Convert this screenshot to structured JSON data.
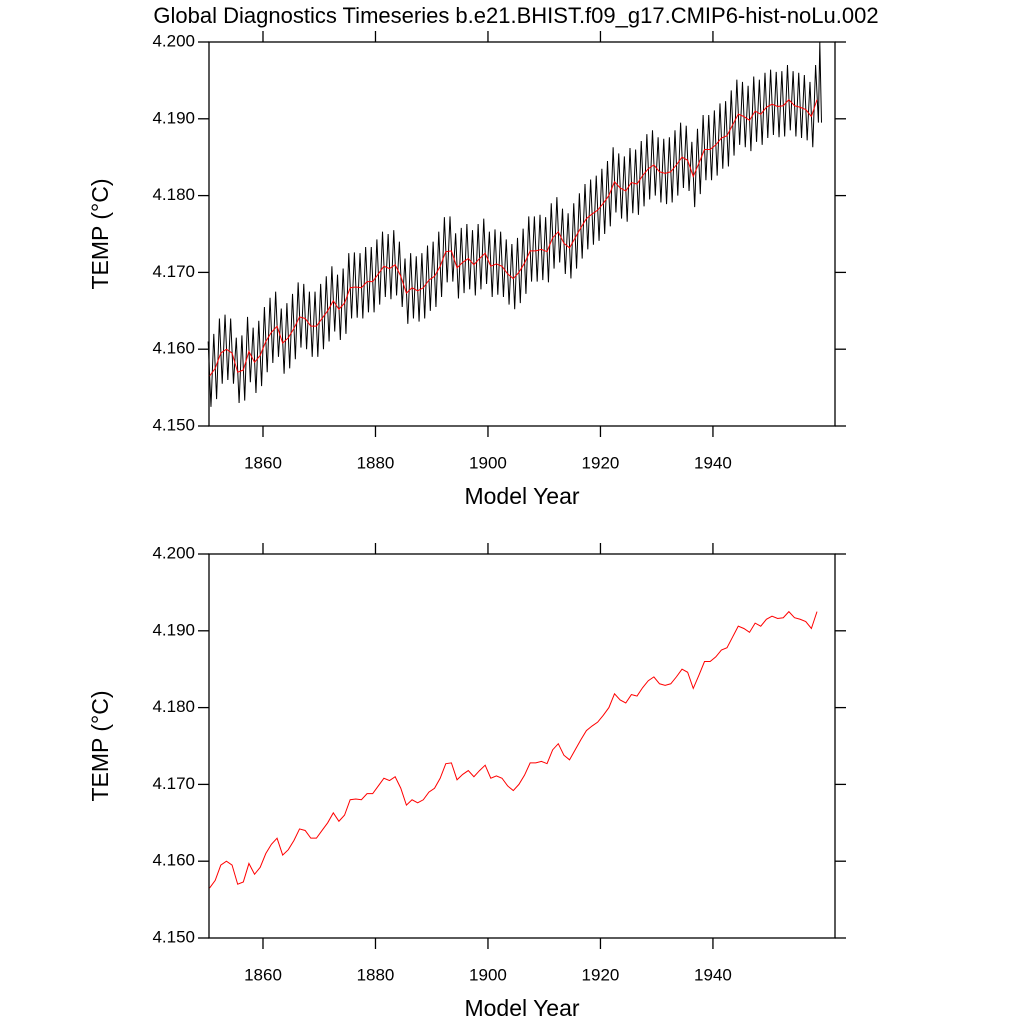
{
  "chart_data": [
    {
      "type": "line",
      "title": "Global Diagnostics Timeseries b.e21.BHIST.f09_g17.CMIP6-hist-noLu.002",
      "xlabel": "Model Year",
      "ylabel": "TEMP (°C)",
      "xlim": [
        1850.4,
        1961.7
      ],
      "xticks": [
        1860,
        1880,
        1900,
        1920,
        1940
      ],
      "ylim": [
        4.15,
        4.2
      ],
      "yticks": [
        {
          "value": 4.15,
          "label": "4.150"
        },
        {
          "value": 4.16,
          "label": "4.160"
        },
        {
          "value": 4.17,
          "label": "4.170"
        },
        {
          "value": 4.18,
          "label": "4.180"
        },
        {
          "value": 4.19,
          "label": "4.190"
        },
        {
          "value": 4.2,
          "label": "4.200"
        }
      ],
      "series": [
        {
          "color": "#000000",
          "x": [
            1850.25,
            1850.75,
            1851.25,
            1851.75,
            1852.25,
            1852.75,
            1853.25,
            1853.75,
            1854.25,
            1854.75,
            1855.25,
            1855.75,
            1856.25,
            1856.75,
            1857.25,
            1857.75,
            1858.25,
            1858.75,
            1859.25,
            1859.75,
            1860.25,
            1860.75,
            1861.25,
            1861.75,
            1862.25,
            1862.75,
            1863.25,
            1863.75,
            1864.25,
            1864.75,
            1865.25,
            1865.75,
            1866.25,
            1866.75,
            1867.25,
            1867.75,
            1868.25,
            1868.75,
            1869.25,
            1869.75,
            1870.25,
            1870.75,
            1871.25,
            1871.75,
            1872.25,
            1872.75,
            1873.25,
            1873.75,
            1874.25,
            1874.75,
            1875.25,
            1875.75,
            1876.25,
            1876.75,
            1877.25,
            1877.75,
            1878.25,
            1878.75,
            1879.25,
            1879.75,
            1880.25,
            1880.75,
            1881.25,
            1881.75,
            1882.25,
            1882.75,
            1883.25,
            1883.75,
            1884.25,
            1884.75,
            1885.25,
            1885.75,
            1886.25,
            1886.75,
            1887.25,
            1887.75,
            1888.25,
            1888.75,
            1889.25,
            1889.75,
            1890.25,
            1890.75,
            1891.25,
            1891.75,
            1892.25,
            1892.75,
            1893.25,
            1893.75,
            1894.25,
            1894.75,
            1895.25,
            1895.75,
            1896.25,
            1896.75,
            1897.25,
            1897.75,
            1898.25,
            1898.75,
            1899.25,
            1899.75,
            1900.25,
            1900.75,
            1901.25,
            1901.75,
            1902.25,
            1902.75,
            1903.25,
            1903.75,
            1904.25,
            1904.75,
            1905.25,
            1905.75,
            1906.25,
            1906.75,
            1907.25,
            1907.75,
            1908.25,
            1908.75,
            1909.25,
            1909.75,
            1910.25,
            1910.75,
            1911.25,
            1911.75,
            1912.25,
            1912.75,
            1913.25,
            1913.75,
            1914.25,
            1914.75,
            1915.25,
            1915.75,
            1916.25,
            1916.75,
            1917.25,
            1917.75,
            1918.25,
            1918.75,
            1919.25,
            1919.75,
            1920.25,
            1920.75,
            1921.25,
            1921.75,
            1922.25,
            1922.75,
            1923.25,
            1923.75,
            1924.25,
            1924.75,
            1925.25,
            1925.75,
            1926.25,
            1926.75,
            1927.25,
            1927.75,
            1928.25,
            1928.75,
            1929.25,
            1929.75,
            1930.25,
            1930.75,
            1931.25,
            1931.75,
            1932.25,
            1932.75,
            1933.25,
            1933.75,
            1934.25,
            1934.75,
            1935.25,
            1935.75,
            1936.25,
            1936.75,
            1937.25,
            1937.75,
            1938.25,
            1938.75,
            1939.25,
            1939.75,
            1940.25,
            1940.75,
            1941.25,
            1941.75,
            1942.25,
            1942.75,
            1943.25,
            1943.75,
            1944.25,
            1944.75,
            1945.25,
            1945.75,
            1946.25,
            1946.75,
            1947.25,
            1947.75,
            1948.25,
            1948.75,
            1949.25,
            1949.75,
            1950.25,
            1950.75,
            1951.25,
            1951.75,
            1952.25,
            1952.75,
            1953.25,
            1953.75,
            1954.25,
            1954.75,
            1955.25,
            1955.75,
            1956.25,
            1956.75,
            1957.25,
            1957.75,
            1958.25,
            1958.75,
            1959.0,
            1959.3
          ],
          "values": [
            4.161,
            4.1525,
            4.162,
            4.1535,
            4.164,
            4.1555,
            4.1645,
            4.156,
            4.164,
            4.1555,
            4.1615,
            4.153,
            4.1618,
            4.1533,
            4.1642,
            4.1557,
            4.1628,
            4.1543,
            4.1637,
            4.1552,
            4.1655,
            4.157,
            4.1667,
            4.1582,
            4.1675,
            4.159,
            4.1653,
            4.1568,
            4.166,
            4.1575,
            4.1672,
            4.1587,
            4.1687,
            4.1602,
            4.1685,
            4.16,
            4.1675,
            4.159,
            4.1675,
            4.159,
            4.1685,
            4.16,
            4.1695,
            4.161,
            4.1708,
            4.1623,
            4.1697,
            4.1612,
            4.1705,
            4.162,
            4.1725,
            4.164,
            4.1726,
            4.1641,
            4.1725,
            4.164,
            4.1733,
            4.1648,
            4.1733,
            4.1648,
            4.1743,
            4.1658,
            4.1753,
            4.1668,
            4.175,
            4.1665,
            4.1755,
            4.167,
            4.174,
            4.1655,
            4.1718,
            4.1633,
            4.1725,
            4.164,
            4.1721,
            4.1636,
            4.1725,
            4.164,
            4.1735,
            4.165,
            4.174,
            4.1655,
            4.1753,
            4.1668,
            4.1772,
            4.1687,
            4.1773,
            4.1688,
            4.1751,
            4.1666,
            4.1758,
            4.1673,
            4.1763,
            4.1678,
            4.1755,
            4.167,
            4.1763,
            4.1678,
            4.177,
            4.1685,
            4.1753,
            4.1668,
            4.1756,
            4.1671,
            4.1753,
            4.1668,
            4.1743,
            4.1658,
            4.1737,
            4.1652,
            4.1745,
            4.166,
            4.1757,
            4.1672,
            4.1773,
            4.1688,
            4.1773,
            4.1688,
            4.1775,
            4.169,
            4.1772,
            4.1687,
            4.179,
            4.1705,
            4.1798,
            4.1713,
            4.1783,
            4.1698,
            4.1777,
            4.1692,
            4.179,
            4.1705,
            4.1803,
            4.1718,
            4.1815,
            4.173,
            4.1821,
            4.1736,
            4.1826,
            4.1741,
            4.1835,
            4.175,
            4.1845,
            4.176,
            4.1863,
            4.1778,
            4.1855,
            4.177,
            4.1851,
            4.1766,
            4.1862,
            4.1777,
            4.186,
            4.1775,
            4.1871,
            4.1786,
            4.188,
            4.1795,
            4.1885,
            4.18,
            4.1876,
            4.1791,
            4.1874,
            4.1789,
            4.1876,
            4.1791,
            4.1885,
            4.18,
            4.1895,
            4.181,
            4.1891,
            4.1806,
            4.187,
            4.1785,
            4.1887,
            4.1802,
            4.1905,
            4.182,
            4.1905,
            4.182,
            4.1911,
            4.1826,
            4.192,
            4.1835,
            4.1923,
            4.1838,
            4.1937,
            4.1852,
            4.1951,
            4.1866,
            4.1948,
            4.1863,
            4.1943,
            4.1858,
            4.1955,
            4.187,
            4.1951,
            4.1866,
            4.196,
            4.1875,
            4.1964,
            4.1879,
            4.1961,
            4.1876,
            4.1962,
            4.1877,
            4.197,
            4.1885,
            4.1962,
            4.1877,
            4.196,
            4.1875,
            4.1957,
            4.1872,
            4.1948,
            4.1863,
            4.197,
            4.1895,
            4.2,
            4.1895
          ]
        },
        {
          "color": "#ff0000",
          "x": [
            1850.5,
            1851.5,
            1852.5,
            1853.5,
            1854.5,
            1855.5,
            1856.5,
            1857.5,
            1858.5,
            1859.5,
            1860.5,
            1861.5,
            1862.5,
            1863.5,
            1864.5,
            1865.5,
            1866.5,
            1867.5,
            1868.5,
            1869.5,
            1870.5,
            1871.5,
            1872.5,
            1873.5,
            1874.5,
            1875.5,
            1876.5,
            1877.5,
            1878.5,
            1879.5,
            1880.5,
            1881.5,
            1882.5,
            1883.5,
            1884.5,
            1885.5,
            1886.5,
            1887.5,
            1888.5,
            1889.5,
            1890.5,
            1891.5,
            1892.5,
            1893.5,
            1894.5,
            1895.5,
            1896.5,
            1897.5,
            1898.5,
            1899.5,
            1900.5,
            1901.5,
            1902.5,
            1903.5,
            1904.5,
            1905.5,
            1906.5,
            1907.5,
            1908.5,
            1909.5,
            1910.5,
            1911.5,
            1912.5,
            1913.5,
            1914.5,
            1915.5,
            1916.5,
            1917.5,
            1918.5,
            1919.5,
            1920.5,
            1921.5,
            1922.5,
            1923.5,
            1924.5,
            1925.5,
            1926.5,
            1927.5,
            1928.5,
            1929.5,
            1930.5,
            1931.5,
            1932.5,
            1933.5,
            1934.5,
            1935.5,
            1936.5,
            1937.5,
            1938.5,
            1939.5,
            1940.5,
            1941.5,
            1942.5,
            1943.5,
            1944.5,
            1945.5,
            1946.5,
            1947.5,
            1948.5,
            1949.5,
            1950.5,
            1951.5,
            1952.5,
            1953.5,
            1954.5,
            1955.5,
            1956.5,
            1957.5,
            1958.5
          ],
          "values": [
            4.1565,
            4.1575,
            4.1595,
            4.16,
            4.1595,
            4.157,
            4.1573,
            4.1597,
            4.1583,
            4.1592,
            4.161,
            4.1622,
            4.163,
            4.1608,
            4.1615,
            4.1627,
            4.1642,
            4.164,
            4.163,
            4.163,
            4.164,
            4.165,
            4.1663,
            4.1652,
            4.166,
            4.168,
            4.1681,
            4.168,
            4.1688,
            4.1688,
            4.1698,
            4.1708,
            4.1705,
            4.171,
            4.1695,
            4.1673,
            4.168,
            4.1676,
            4.168,
            4.169,
            4.1695,
            4.1708,
            4.1727,
            4.1728,
            4.1706,
            4.1713,
            4.1718,
            4.171,
            4.1718,
            4.1725,
            4.1708,
            4.1711,
            4.1708,
            4.1698,
            4.1692,
            4.17,
            4.1712,
            4.1728,
            4.1728,
            4.173,
            4.1727,
            4.1745,
            4.1753,
            4.1738,
            4.1732,
            4.1745,
            4.1758,
            4.177,
            4.1776,
            4.1781,
            4.179,
            4.18,
            4.1818,
            4.181,
            4.1806,
            4.1817,
            4.1815,
            4.1826,
            4.1835,
            4.184,
            4.1831,
            4.1829,
            4.1831,
            4.184,
            4.185,
            4.1846,
            4.1825,
            4.1842,
            4.186,
            4.186,
            4.1866,
            4.1875,
            4.1878,
            4.1892,
            4.1906,
            4.1903,
            4.1898,
            4.191,
            4.1906,
            4.1915,
            4.1919,
            4.1916,
            4.1917,
            4.1925,
            4.1917,
            4.1915,
            4.1912,
            4.1903,
            4.1925
          ]
        }
      ]
    },
    {
      "type": "line",
      "xlabel": "Model Year",
      "ylabel": "TEMP (°C)",
      "xlim": [
        1850.4,
        1961.7
      ],
      "xticks": [
        1860,
        1880,
        1900,
        1920,
        1940
      ],
      "ylim": [
        4.15,
        4.2
      ],
      "yticks": [
        {
          "value": 4.15,
          "label": "4.150"
        },
        {
          "value": 4.16,
          "label": "4.160"
        },
        {
          "value": 4.17,
          "label": "4.170"
        },
        {
          "value": 4.18,
          "label": "4.180"
        },
        {
          "value": 4.19,
          "label": "4.190"
        },
        {
          "value": 4.2,
          "label": "4.200"
        }
      ],
      "series": [
        {
          "color": "#ff0000",
          "x": [
            1850.5,
            1851.5,
            1852.5,
            1853.5,
            1854.5,
            1855.5,
            1856.5,
            1857.5,
            1858.5,
            1859.5,
            1860.5,
            1861.5,
            1862.5,
            1863.5,
            1864.5,
            1865.5,
            1866.5,
            1867.5,
            1868.5,
            1869.5,
            1870.5,
            1871.5,
            1872.5,
            1873.5,
            1874.5,
            1875.5,
            1876.5,
            1877.5,
            1878.5,
            1879.5,
            1880.5,
            1881.5,
            1882.5,
            1883.5,
            1884.5,
            1885.5,
            1886.5,
            1887.5,
            1888.5,
            1889.5,
            1890.5,
            1891.5,
            1892.5,
            1893.5,
            1894.5,
            1895.5,
            1896.5,
            1897.5,
            1898.5,
            1899.5,
            1900.5,
            1901.5,
            1902.5,
            1903.5,
            1904.5,
            1905.5,
            1906.5,
            1907.5,
            1908.5,
            1909.5,
            1910.5,
            1911.5,
            1912.5,
            1913.5,
            1914.5,
            1915.5,
            1916.5,
            1917.5,
            1918.5,
            1919.5,
            1920.5,
            1921.5,
            1922.5,
            1923.5,
            1924.5,
            1925.5,
            1926.5,
            1927.5,
            1928.5,
            1929.5,
            1930.5,
            1931.5,
            1932.5,
            1933.5,
            1934.5,
            1935.5,
            1936.5,
            1937.5,
            1938.5,
            1939.5,
            1940.5,
            1941.5,
            1942.5,
            1943.5,
            1944.5,
            1945.5,
            1946.5,
            1947.5,
            1948.5,
            1949.5,
            1950.5,
            1951.5,
            1952.5,
            1953.5,
            1954.5,
            1955.5,
            1956.5,
            1957.5,
            1958.5
          ],
          "values": [
            4.1565,
            4.1575,
            4.1595,
            4.16,
            4.1595,
            4.157,
            4.1573,
            4.1597,
            4.1583,
            4.1592,
            4.161,
            4.1622,
            4.163,
            4.1608,
            4.1615,
            4.1627,
            4.1642,
            4.164,
            4.163,
            4.163,
            4.164,
            4.165,
            4.1663,
            4.1652,
            4.166,
            4.168,
            4.1681,
            4.168,
            4.1688,
            4.1688,
            4.1698,
            4.1708,
            4.1705,
            4.171,
            4.1695,
            4.1673,
            4.168,
            4.1676,
            4.168,
            4.169,
            4.1695,
            4.1708,
            4.1727,
            4.1728,
            4.1706,
            4.1713,
            4.1718,
            4.171,
            4.1718,
            4.1725,
            4.1708,
            4.1711,
            4.1708,
            4.1698,
            4.1692,
            4.17,
            4.1712,
            4.1728,
            4.1728,
            4.173,
            4.1727,
            4.1745,
            4.1753,
            4.1738,
            4.1732,
            4.1745,
            4.1758,
            4.177,
            4.1776,
            4.1781,
            4.179,
            4.18,
            4.1818,
            4.181,
            4.1806,
            4.1817,
            4.1815,
            4.1826,
            4.1835,
            4.184,
            4.1831,
            4.1829,
            4.1831,
            4.184,
            4.185,
            4.1846,
            4.1825,
            4.1842,
            4.186,
            4.186,
            4.1866,
            4.1875,
            4.1878,
            4.1892,
            4.1906,
            4.1903,
            4.1898,
            4.191,
            4.1906,
            4.1915,
            4.1919,
            4.1916,
            4.1917,
            4.1925,
            4.1917,
            4.1915,
            4.1912,
            4.1903,
            4.1925
          ]
        }
      ]
    }
  ]
}
